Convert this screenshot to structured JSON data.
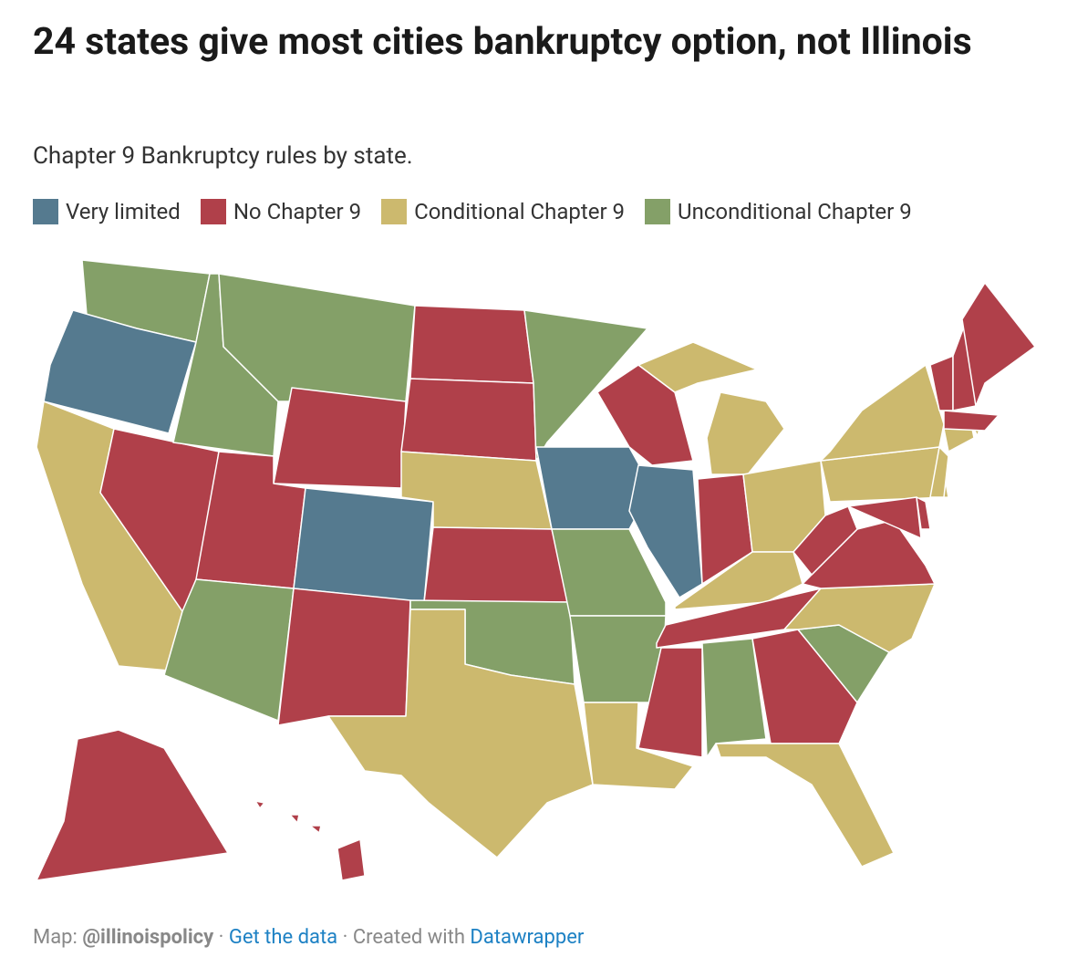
{
  "header": {
    "title": "24 states give most cities bankruptcy option, not Illinois",
    "subtitle": "Chapter 9 Bankruptcy rules by state."
  },
  "legend": [
    {
      "label": "Very limited",
      "color": "#557a8f"
    },
    {
      "label": "No Chapter 9",
      "color": "#b0404a"
    },
    {
      "label": "Conditional Chapter 9",
      "color": "#ccb96e"
    },
    {
      "label": "Unconditional Chapter 9",
      "color": "#84a068"
    }
  ],
  "footer": {
    "source_label": "Map:",
    "source": "@illinoispolicy",
    "data_link": "Get the data",
    "credit_label": "Created with",
    "credit": "Datawrapper"
  }
}
